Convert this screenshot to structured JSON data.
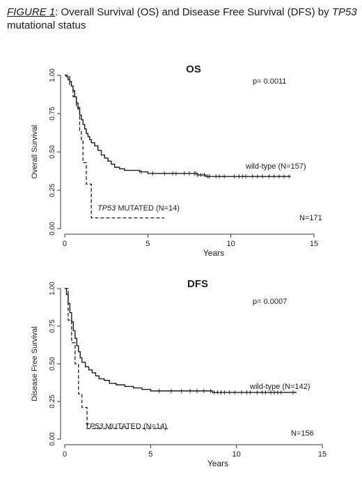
{
  "caption": {
    "lead": "FIGURE 1",
    "text1": ": Overall Survival (OS) and Disease Free Survival (DFS) by ",
    "gene": "TP53",
    "text2": " mutational status"
  },
  "chart_data": [
    {
      "type": "line",
      "title": "OS",
      "xlabel": "Years",
      "ylabel": "Overall Survival",
      "xlim": [
        0,
        15
      ],
      "ylim": [
        0,
        1
      ],
      "xticks": [
        "0",
        "5",
        "10",
        "15"
      ],
      "yticks": [
        "0.00",
        "0.25",
        "0.50",
        "0.75",
        "1.00"
      ],
      "pvalue": "p= 0.0011",
      "total": "N=171",
      "series": [
        {
          "name": "wild-type (N=157)",
          "style": "solid",
          "x": [
            0,
            0.1,
            0.2,
            0.3,
            0.4,
            0.5,
            0.6,
            0.7,
            0.8,
            0.9,
            1.0,
            1.1,
            1.2,
            1.3,
            1.4,
            1.5,
            1.6,
            1.8,
            2.0,
            2.2,
            2.4,
            2.6,
            2.8,
            3.0,
            3.3,
            3.6,
            4.0,
            4.5,
            5.0,
            5.5,
            6.0,
            7.0,
            8.0,
            8.5,
            9.0,
            10.0,
            11.0,
            12.0,
            13.0,
            13.6
          ],
          "y": [
            1.0,
            0.99,
            0.97,
            0.96,
            0.93,
            0.9,
            0.86,
            0.82,
            0.78,
            0.74,
            0.71,
            0.68,
            0.65,
            0.62,
            0.6,
            0.58,
            0.56,
            0.54,
            0.51,
            0.48,
            0.46,
            0.44,
            0.42,
            0.4,
            0.39,
            0.38,
            0.38,
            0.37,
            0.36,
            0.36,
            0.36,
            0.36,
            0.35,
            0.34,
            0.34,
            0.34,
            0.34,
            0.34,
            0.34,
            0.34
          ],
          "censor": [
            4.6,
            5.3,
            6.0,
            6.5,
            6.7,
            7.2,
            7.5,
            7.8,
            7.9,
            8.0,
            8.2,
            8.4,
            8.6,
            8.7,
            9.1,
            9.3,
            9.6,
            10.2,
            10.5,
            10.7,
            10.9,
            11.3,
            11.6,
            11.9,
            12.3,
            12.6,
            12.9,
            13.2,
            13.5
          ],
          "label": "wild-type (N=157)"
        },
        {
          "name": "TP53 MUTATED (N=14)",
          "style": "dashed",
          "x": [
            0,
            0.3,
            0.5,
            0.7,
            0.9,
            1.0,
            1.1,
            1.3,
            1.6,
            6.0
          ],
          "y": [
            1.0,
            0.93,
            0.86,
            0.79,
            0.64,
            0.57,
            0.43,
            0.29,
            0.07,
            0.07
          ],
          "censor": [],
          "label": "MUTATED (N=14)",
          "label_gene": "TP53"
        }
      ]
    },
    {
      "type": "line",
      "title": "DFS",
      "xlabel": "Years",
      "ylabel": "Disease Free Survival",
      "xlim": [
        0,
        15
      ],
      "ylim": [
        0,
        1
      ],
      "xticks": [
        "0",
        "5",
        "10",
        "15"
      ],
      "yticks": [
        "0.00",
        "0.25",
        "0.50",
        "0.75",
        "1.00"
      ],
      "pvalue": "p= 0.0007",
      "total": "N=156",
      "series": [
        {
          "name": "wild-type (N=142)",
          "style": "solid",
          "x": [
            0,
            0.1,
            0.2,
            0.3,
            0.4,
            0.5,
            0.6,
            0.7,
            0.8,
            0.9,
            1.0,
            1.2,
            1.4,
            1.6,
            1.8,
            2.0,
            2.3,
            2.6,
            3.0,
            3.5,
            4.0,
            4.5,
            5.0,
            6.0,
            7.0,
            8.0,
            8.6,
            9.0,
            10.0,
            11.0,
            12.0,
            13.5
          ],
          "y": [
            1.0,
            0.96,
            0.9,
            0.84,
            0.78,
            0.72,
            0.67,
            0.62,
            0.58,
            0.54,
            0.51,
            0.48,
            0.46,
            0.44,
            0.42,
            0.4,
            0.39,
            0.37,
            0.36,
            0.35,
            0.34,
            0.33,
            0.32,
            0.32,
            0.32,
            0.32,
            0.31,
            0.31,
            0.31,
            0.31,
            0.31,
            0.31
          ],
          "censor": [
            5.5,
            6.2,
            6.8,
            7.3,
            7.7,
            8.1,
            8.5,
            8.7,
            8.9,
            9.1,
            9.3,
            9.6,
            9.9,
            10.3,
            10.6,
            10.8,
            11.2,
            11.5,
            11.7,
            12.0,
            12.2,
            12.4,
            12.6,
            13.3
          ],
          "label": "wild-type (N=142)"
        },
        {
          "name": "TP53 MUTATED (N=14)",
          "style": "dashed",
          "x": [
            0,
            0.2,
            0.4,
            0.6,
            0.8,
            1.0,
            1.3,
            6.0
          ],
          "y": [
            1.0,
            0.79,
            0.64,
            0.5,
            0.3,
            0.21,
            0.07,
            0.07
          ],
          "censor": [],
          "label": "MUTATED (N=14)",
          "label_gene": "TP53"
        }
      ]
    }
  ]
}
